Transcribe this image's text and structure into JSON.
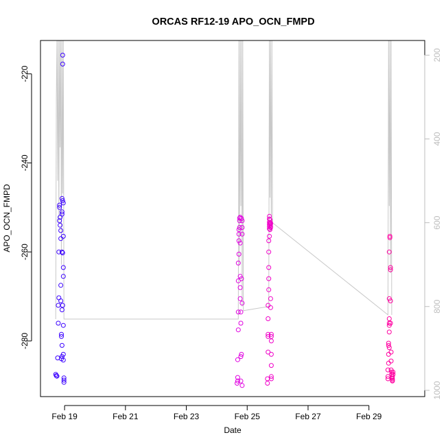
{
  "chart_data": {
    "type": "scatter",
    "title": "ORCAS RF12-19 APO_OCN_FMPD",
    "xlabel": "Date",
    "ylabel": "APO_OCN_FMPD",
    "xlim": [
      "2016-02-18T05:00",
      "2016-03-01T20:00"
    ],
    "ylim": [
      -292.5,
      -212.5
    ],
    "y2lim": [
      1015,
      165
    ],
    "x_ticks": [
      {
        "label": "Feb 19",
        "date": "2016-02-19T00:00"
      },
      {
        "label": "Feb 21",
        "date": "2016-02-21T00:00"
      },
      {
        "label": "Feb 23",
        "date": "2016-02-23T00:00"
      },
      {
        "label": "Feb 25",
        "date": "2016-02-25T00:00"
      },
      {
        "label": "Feb 27",
        "date": "2016-02-27T00:00"
      },
      {
        "label": "Feb 29",
        "date": "2016-02-29T00:00"
      }
    ],
    "y_ticks": [
      -280,
      -260,
      -240,
      -220
    ],
    "y2_ticks": [
      1000,
      800,
      600,
      400,
      200
    ],
    "colors": {
      "flight1": "#3a00ff",
      "flight2": "#e000e0",
      "flight3": "#f000c8",
      "flight4": "#ff00a0",
      "pressure_line": "#c8c8c8",
      "axis": "#000000",
      "right_axis": "#bdbdbd"
    },
    "series": [
      {
        "color_key": "flight1",
        "points": [
          [
            "2016-02-18T17:00",
            -287.5
          ],
          [
            "2016-02-18T17:30",
            -287.8
          ],
          [
            "2016-02-18T18:00",
            -287.9
          ],
          [
            "2016-02-18T18:30",
            -283.8
          ],
          [
            "2016-02-18T19:00",
            -276.0
          ],
          [
            "2016-02-18T19:00",
            -272.0
          ],
          [
            "2016-02-18T19:30",
            -270.3
          ],
          [
            "2016-02-18T19:30",
            -260.0
          ],
          [
            "2016-02-18T20:00",
            -250.0
          ],
          [
            "2016-02-18T20:00",
            -249.5
          ],
          [
            "2016-02-18T20:00",
            -253.0
          ],
          [
            "2016-02-18T20:30",
            -252.2
          ],
          [
            "2016-02-18T20:30",
            -254.0
          ],
          [
            "2016-02-18T21:00",
            -255.2
          ],
          [
            "2016-02-18T21:00",
            -257.0
          ],
          [
            "2016-02-18T21:00",
            -267.5
          ],
          [
            "2016-02-18T21:00",
            -271.0
          ],
          [
            "2016-02-18T21:30",
            -278.5
          ],
          [
            "2016-02-18T21:30",
            -279.0
          ],
          [
            "2016-02-18T21:30",
            -284.0
          ],
          [
            "2016-02-18T22:00",
            -283.5
          ],
          [
            "2016-02-18T22:00",
            -281.0
          ],
          [
            "2016-02-18T22:00",
            -273.0
          ],
          [
            "2016-02-18T22:00",
            -260.0
          ],
          [
            "2016-02-18T22:00",
            -251.5
          ],
          [
            "2016-02-18T22:00",
            -251.0
          ],
          [
            "2016-02-18T22:00",
            -248.0
          ],
          [
            "2016-02-18T22:30",
            -217.8
          ],
          [
            "2016-02-18T22:30",
            -215.8
          ],
          [
            "2016-02-18T22:30",
            -248.5
          ],
          [
            "2016-02-18T23:00",
            -249.0
          ],
          [
            "2016-02-18T23:00",
            -256.5
          ],
          [
            "2016-02-18T23:00",
            -263.5
          ],
          [
            "2016-02-18T23:00",
            -265.5
          ],
          [
            "2016-02-18T23:00",
            -276.5
          ],
          [
            "2016-02-18T23:00",
            -283.0
          ],
          [
            "2016-02-18T23:00",
            -284.3
          ],
          [
            "2016-02-18T23:30",
            -288.3
          ],
          [
            "2016-02-18T23:30",
            -288.8
          ],
          [
            "2016-02-18T23:30",
            -289.3
          ],
          [
            "2016-02-18T22:30",
            -260.2
          ],
          [
            "2016-02-18T22:30",
            -272.0
          ]
        ]
      },
      {
        "color_key": "flight2",
        "points": [
          [
            "2016-02-24T16:00",
            -289.5
          ],
          [
            "2016-02-24T16:30",
            -289.0
          ],
          [
            "2016-02-24T16:30",
            -288.2
          ],
          [
            "2016-02-24T16:30",
            -284.2
          ],
          [
            "2016-02-24T17:00",
            -277.5
          ],
          [
            "2016-02-24T17:00",
            -273.5
          ],
          [
            "2016-02-24T17:00",
            -266.5
          ],
          [
            "2016-02-24T17:00",
            -262.5
          ],
          [
            "2016-02-24T17:30",
            -260.5
          ],
          [
            "2016-02-24T17:30",
            -257.5
          ],
          [
            "2016-02-24T17:30",
            -256.0
          ],
          [
            "2016-02-24T17:30",
            -255.0
          ],
          [
            "2016-02-24T18:00",
            -253.0
          ],
          [
            "2016-02-24T18:00",
            -252.4
          ],
          [
            "2016-02-24T18:00",
            -254.5
          ],
          [
            "2016-02-24T18:30",
            -252.2
          ],
          [
            "2016-02-24T18:30",
            -258.0
          ],
          [
            "2016-02-24T18:30",
            -265.5
          ],
          [
            "2016-02-24T18:30",
            -268.0
          ],
          [
            "2016-02-24T18:30",
            -270.5
          ],
          [
            "2016-02-24T19:00",
            -273.5
          ],
          [
            "2016-02-24T19:00",
            -276.0
          ],
          [
            "2016-02-24T19:00",
            -283.5
          ],
          [
            "2016-02-24T19:00",
            -289.0
          ],
          [
            "2016-02-24T19:30",
            -283.0
          ],
          [
            "2016-02-24T19:30",
            -266.0
          ],
          [
            "2016-02-24T19:30",
            -252.5
          ],
          [
            "2016-02-24T20:00",
            -254.5
          ],
          [
            "2016-02-24T20:00",
            -256.0
          ],
          [
            "2016-02-24T20:00",
            -271.5
          ],
          [
            "2016-02-24T20:00",
            -290.0
          ],
          [
            "2016-02-24T20:00",
            -253.0
          ]
        ]
      },
      {
        "color_key": "flight3",
        "points": [
          [
            "2016-02-25T16:00",
            -289.5
          ],
          [
            "2016-02-25T16:00",
            -288.5
          ],
          [
            "2016-02-25T16:30",
            -282.5
          ],
          [
            "2016-02-25T16:30",
            -279.0
          ],
          [
            "2016-02-25T16:30",
            -278.5
          ],
          [
            "2016-02-25T16:30",
            -275.0
          ],
          [
            "2016-02-25T16:30",
            -272.0
          ],
          [
            "2016-02-25T17:00",
            -268.5
          ],
          [
            "2016-02-25T17:00",
            -266.0
          ],
          [
            "2016-02-25T17:00",
            -263.5
          ],
          [
            "2016-02-25T17:00",
            -260.0
          ],
          [
            "2016-02-25T17:00",
            -257.5
          ],
          [
            "2016-02-25T17:30",
            -256.5
          ],
          [
            "2016-02-25T17:30",
            -254.8
          ],
          [
            "2016-02-25T17:30",
            -254.3
          ],
          [
            "2016-02-25T17:30",
            -253.8
          ],
          [
            "2016-02-25T17:30",
            -253.3
          ],
          [
            "2016-02-25T17:30",
            -252.6
          ],
          [
            "2016-02-25T17:30",
            -252.0
          ],
          [
            "2016-02-25T18:00",
            -252.8
          ],
          [
            "2016-02-25T18:00",
            -253.5
          ],
          [
            "2016-02-25T18:00",
            -254.0
          ],
          [
            "2016-02-25T18:00",
            -255.0
          ],
          [
            "2016-02-25T18:30",
            -253.5
          ],
          [
            "2016-02-25T18:30",
            -253.7
          ],
          [
            "2016-02-25T18:30",
            -254.3
          ],
          [
            "2016-02-25T18:30",
            -254.5
          ],
          [
            "2016-02-25T18:30",
            -270.5
          ],
          [
            "2016-02-25T18:30",
            -272.5
          ],
          [
            "2016-02-25T19:00",
            -278.5
          ],
          [
            "2016-02-25T19:00",
            -279.0
          ],
          [
            "2016-02-25T19:00",
            -283.0
          ],
          [
            "2016-02-25T19:00",
            -285.5
          ],
          [
            "2016-02-25T19:00",
            -288.0
          ],
          [
            "2016-02-25T19:00",
            -288.5
          ],
          [
            "2016-02-25T19:00",
            -280.0
          ]
        ]
      },
      {
        "color_key": "flight4",
        "points": [
          [
            "2016-02-29T15:00",
            -288.5
          ],
          [
            "2016-02-29T15:00",
            -288.0
          ],
          [
            "2016-02-29T15:00",
            -286.5
          ],
          [
            "2016-02-29T15:30",
            -285.0
          ],
          [
            "2016-02-29T15:30",
            -283.0
          ],
          [
            "2016-02-29T15:30",
            -281.0
          ],
          [
            "2016-02-29T15:30",
            -280.5
          ],
          [
            "2016-02-29T16:00",
            -281.5
          ],
          [
            "2016-02-29T16:00",
            -278.0
          ],
          [
            "2016-02-29T16:00",
            -276.5
          ],
          [
            "2016-02-29T16:00",
            -275.0
          ],
          [
            "2016-02-29T16:00",
            -276.0
          ],
          [
            "2016-02-29T16:00",
            -270.5
          ],
          [
            "2016-02-29T16:00",
            -260.0
          ],
          [
            "2016-02-29T16:30",
            -256.5
          ],
          [
            "2016-02-29T16:30",
            -256.8
          ],
          [
            "2016-02-29T17:00",
            -263.5
          ],
          [
            "2016-02-29T17:00",
            -264.0
          ],
          [
            "2016-02-29T17:00",
            -271.0
          ],
          [
            "2016-02-29T17:00",
            -276.0
          ],
          [
            "2016-02-29T17:30",
            -282.5
          ],
          [
            "2016-02-29T17:30",
            -284.5
          ],
          [
            "2016-02-29T17:30",
            -286.5
          ],
          [
            "2016-02-29T18:00",
            -287.0
          ],
          [
            "2016-02-29T18:00",
            -287.5
          ],
          [
            "2016-02-29T18:00",
            -288.3
          ],
          [
            "2016-02-29T18:30",
            -288.5
          ],
          [
            "2016-02-29T18:30",
            -288.8
          ],
          [
            "2016-02-29T18:30",
            -289.0
          ],
          [
            "2016-02-29T18:30",
            -288.0
          ],
          [
            "2016-02-29T19:00",
            -287.5
          ],
          [
            "2016-02-29T19:00",
            -287.0
          ]
        ]
      }
    ],
    "pressure_trace": [
      [
        "2016-02-18T17:00",
        830
      ],
      [
        "2016-02-18T17:30",
        300
      ],
      [
        "2016-02-18T18:00",
        165
      ],
      [
        "2016-02-18T18:30",
        500
      ],
      [
        "2016-02-18T19:00",
        165
      ],
      [
        "2016-02-18T19:30",
        600
      ],
      [
        "2016-02-18T20:00",
        165
      ],
      [
        "2016-02-18T20:30",
        420
      ],
      [
        "2016-02-18T21:00",
        165
      ],
      [
        "2016-02-18T21:30",
        700
      ],
      [
        "2016-02-18T22:00",
        165
      ],
      [
        "2016-02-18T22:30",
        530
      ],
      [
        "2016-02-18T23:00",
        165
      ],
      [
        "2016-02-18T23:30",
        830
      ],
      [
        "2016-02-24T17:00",
        830
      ],
      [
        "2016-02-24T17:30",
        165
      ],
      [
        "2016-02-24T18:00",
        700
      ],
      [
        "2016-02-24T18:30",
        165
      ],
      [
        "2016-02-24T19:00",
        560
      ],
      [
        "2016-02-24T19:30",
        165
      ],
      [
        "2016-02-24T20:00",
        800
      ],
      [
        "2016-02-24T20:30",
        165
      ],
      [
        "2016-02-24T21:00",
        810
      ],
      [
        "2016-02-25T17:00",
        800
      ],
      [
        "2016-02-25T17:30",
        165
      ],
      [
        "2016-02-25T18:00",
        540
      ],
      [
        "2016-02-25T18:30",
        165
      ],
      [
        "2016-02-25T19:00",
        620
      ],
      [
        "2016-02-25T19:30",
        165
      ],
      [
        "2016-02-25T20:00",
        600
      ],
      [
        "2016-02-29T15:00",
        820
      ],
      [
        "2016-02-29T15:30",
        165
      ],
      [
        "2016-02-29T16:00",
        560
      ],
      [
        "2016-02-29T16:30",
        165
      ],
      [
        "2016-02-29T17:00",
        720
      ],
      [
        "2016-02-29T17:30",
        165
      ],
      [
        "2016-02-29T18:00",
        820
      ]
    ]
  }
}
